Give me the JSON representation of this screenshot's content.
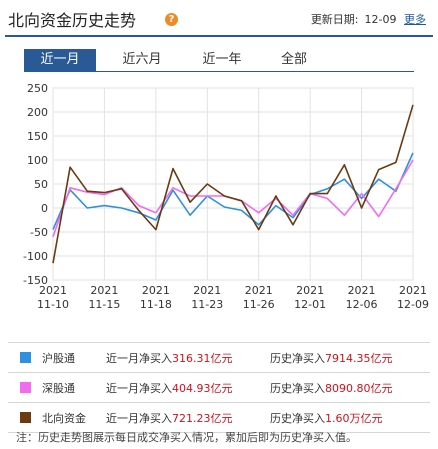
{
  "header": {
    "title": "北向资金历史走势",
    "help_icon": "question-circle-icon",
    "updated_label": "更新日期:",
    "updated_date": "12-09",
    "more_link": "更多"
  },
  "tabs": [
    {
      "label": "近一月",
      "active": true
    },
    {
      "label": "近六月",
      "active": false
    },
    {
      "label": "近一年",
      "active": false
    },
    {
      "label": "全部",
      "active": false
    }
  ],
  "legend": [
    {
      "name": "沪股通",
      "color": "#2f8fe0",
      "month_label": "近一月净买入",
      "month_value": "316.31亿元",
      "hist_label": "历史净买入",
      "hist_value": "7914.35亿元"
    },
    {
      "name": "深股通",
      "color": "#f06cf0",
      "month_label": "近一月净买入",
      "month_value": "404.93亿元",
      "hist_label": "历史净买入",
      "hist_value": "8090.80亿元"
    },
    {
      "name": "北向资金",
      "color": "#6b3a10",
      "month_label": "近一月净买入",
      "month_value": "721.23亿元",
      "hist_label": "历史净买入",
      "hist_value": "1.60万亿元"
    }
  ],
  "note": "注：历史走势图展示每日成交净买入情况，累加后即为历史净买入值。",
  "chart_data": {
    "type": "line",
    "ylim": [
      -150,
      250
    ],
    "yticks": [
      -150,
      -100,
      -50,
      0,
      50,
      100,
      150,
      200,
      250
    ],
    "x": [
      "11-10",
      "11-11",
      "11-12",
      "11-15",
      "11-16",
      "11-17",
      "11-18",
      "11-19",
      "11-22",
      "11-23",
      "11-24",
      "11-25",
      "11-26",
      "11-29",
      "11-30",
      "12-01",
      "12-02",
      "12-03",
      "12-06",
      "12-07",
      "12-08",
      "12-09"
    ],
    "x_tick_labels": [
      {
        "at": "11-10",
        "year": "2021",
        "date": "11-10"
      },
      {
        "at": "11-15",
        "year": "2021",
        "date": "11-15"
      },
      {
        "at": "11-18",
        "year": "2021",
        "date": "11-18"
      },
      {
        "at": "11-23",
        "year": "2021",
        "date": "11-23"
      },
      {
        "at": "11-26",
        "year": "2021",
        "date": "11-26"
      },
      {
        "at": "12-01",
        "year": "2021",
        "date": "12-01"
      },
      {
        "at": "12-06",
        "year": "2021",
        "date": "12-06"
      },
      {
        "at": "12-09",
        "year": "2021",
        "date": "12-09"
      }
    ],
    "series": [
      {
        "name": "沪股通",
        "color": "#2f8fe0",
        "values": [
          -45,
          38,
          0,
          5,
          0,
          -10,
          -25,
          37,
          -15,
          25,
          2,
          -5,
          -35,
          5,
          -20,
          28,
          40,
          60,
          20,
          60,
          35,
          115
        ]
      },
      {
        "name": "深股通",
        "color": "#f06cf0",
        "values": [
          -60,
          42,
          33,
          28,
          42,
          5,
          -10,
          42,
          25,
          25,
          25,
          15,
          -10,
          20,
          -15,
          30,
          20,
          -15,
          30,
          -18,
          40,
          100
        ]
      },
      {
        "name": "北向资金",
        "color": "#6b3a10",
        "values": [
          -115,
          85,
          35,
          32,
          40,
          -5,
          -45,
          82,
          12,
          50,
          25,
          15,
          -45,
          25,
          -35,
          30,
          30,
          90,
          0,
          80,
          95,
          215
        ]
      }
    ]
  }
}
